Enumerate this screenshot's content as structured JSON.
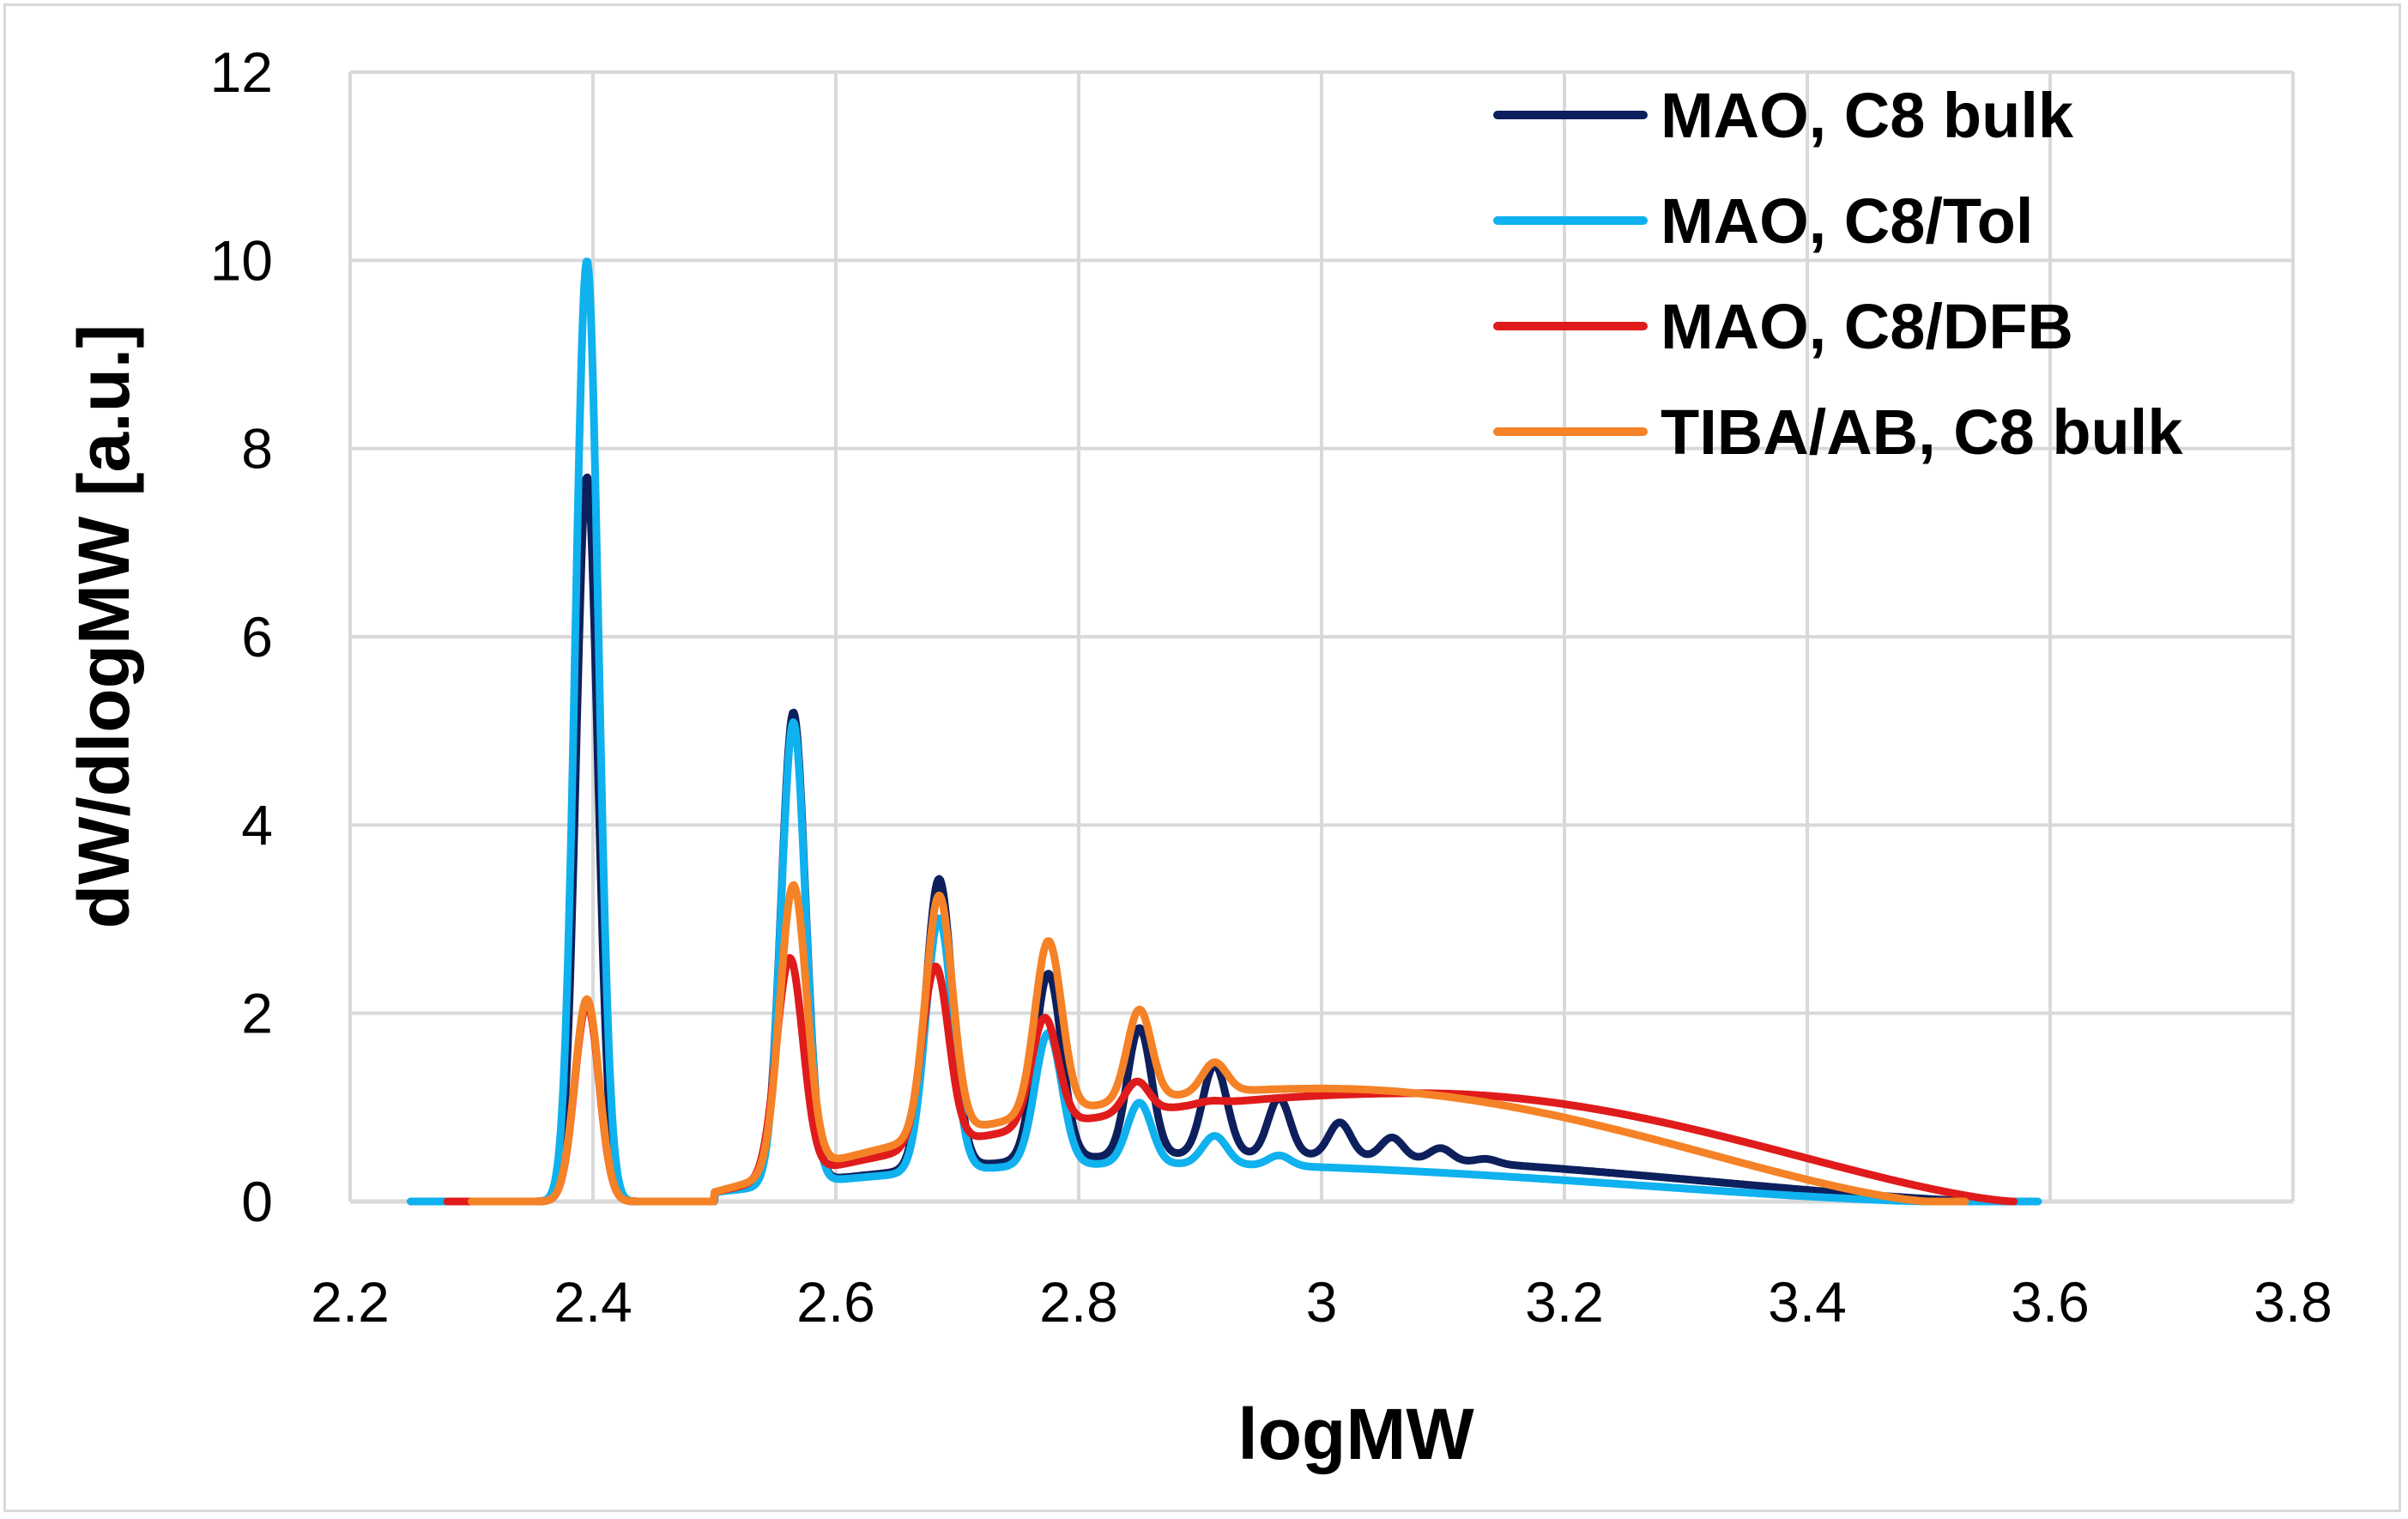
{
  "chart_data": {
    "type": "line",
    "title": "",
    "xlabel": "logMW",
    "ylabel": "dW/dlogMW [a.u.]",
    "xlim": [
      2.2,
      3.8
    ],
    "ylim": [
      0,
      12
    ],
    "xticks": [
      2.2,
      2.4,
      2.6,
      2.8,
      3.0,
      3.2,
      3.4,
      3.6,
      3.8
    ],
    "xtick_labels": [
      "2.2",
      "2.4",
      "2.6",
      "2.8",
      "3",
      "3.2",
      "3.4",
      "3.6",
      "3.8"
    ],
    "yticks": [
      0,
      2,
      4,
      6,
      8,
      10,
      12
    ],
    "ytick_labels": [
      "0",
      "2",
      "4",
      "6",
      "8",
      "10",
      "12"
    ],
    "grid": true,
    "legend_position": "top-right",
    "series": [
      {
        "name": "MAO, C8 bulk",
        "color": "#0d1f5c",
        "x_range": [
          2.25,
          3.58
        ],
        "baseline": {
          "start": 2.5,
          "end": 3.55,
          "peak_at": 2.92,
          "left_height": 0.1,
          "plateau_height": 0.5,
          "right_height": 0.0
        },
        "peaks": [
          {
            "x": 2.395,
            "height": 7.7,
            "width": 0.009
          },
          {
            "x": 2.565,
            "height": 5.1,
            "width": 0.01
          },
          {
            "x": 2.685,
            "height": 3.25,
            "width": 0.011
          },
          {
            "x": 2.775,
            "height": 2.2,
            "width": 0.011
          },
          {
            "x": 2.85,
            "height": 1.6,
            "width": 0.01
          },
          {
            "x": 2.912,
            "height": 1.2,
            "width": 0.01
          },
          {
            "x": 2.965,
            "height": 0.85,
            "width": 0.009
          },
          {
            "x": 3.015,
            "height": 0.6,
            "width": 0.009
          },
          {
            "x": 3.058,
            "height": 0.45,
            "width": 0.009
          },
          {
            "x": 3.098,
            "height": 0.35,
            "width": 0.009
          },
          {
            "x": 3.135,
            "height": 0.25,
            "width": 0.009
          }
        ]
      },
      {
        "name": "MAO, C8/Tol",
        "color": "#0fb1ee",
        "x_range": [
          2.25,
          3.59
        ],
        "baseline": {
          "start": 2.5,
          "end": 3.5,
          "peak_at": 2.85,
          "left_height": 0.1,
          "plateau_height": 0.4,
          "right_height": 0.0
        },
        "peaks": [
          {
            "x": 2.395,
            "height": 10.0,
            "width": 0.0095
          },
          {
            "x": 2.565,
            "height": 5.0,
            "width": 0.01
          },
          {
            "x": 2.685,
            "height": 2.85,
            "width": 0.011
          },
          {
            "x": 2.775,
            "height": 1.6,
            "width": 0.011
          },
          {
            "x": 2.85,
            "height": 0.85,
            "width": 0.01
          },
          {
            "x": 2.912,
            "height": 0.5,
            "width": 0.01
          },
          {
            "x": 2.965,
            "height": 0.3,
            "width": 0.009
          },
          {
            "x": 3.015,
            "height": 0.15,
            "width": 0.009
          }
        ]
      },
      {
        "name": "MAO, C8/DFB",
        "color": "#e01b1b",
        "x_range": [
          2.28,
          3.57
        ],
        "baseline": {
          "start": 2.5,
          "end": 3.57,
          "peak_at": 3.08,
          "left_height": 0.1,
          "plateau_height": 1.15,
          "right_height": 0.0
        },
        "peaks": [
          {
            "x": 2.395,
            "height": 2.1,
            "width": 0.01
          },
          {
            "x": 2.562,
            "height": 2.45,
            "width": 0.011
          },
          {
            "x": 2.682,
            "height": 2.2,
            "width": 0.011
          },
          {
            "x": 2.772,
            "height": 1.55,
            "width": 0.011
          },
          {
            "x": 2.848,
            "height": 0.8,
            "width": 0.01
          },
          {
            "x": 2.91,
            "height": 0.55,
            "width": 0.01
          },
          {
            "x": 2.962,
            "height": 0.4,
            "width": 0.009
          },
          {
            "x": 3.01,
            "height": 0.25,
            "width": 0.009
          },
          {
            "x": 3.055,
            "height": 0.15,
            "width": 0.009
          },
          {
            "x": 3.095,
            "height": 0.1,
            "width": 0.009
          }
        ]
      },
      {
        "name": "TIBA/AB, C8 bulk",
        "color": "#f58226",
        "x_range": [
          2.3,
          3.53
        ],
        "baseline": {
          "start": 2.5,
          "end": 3.5,
          "peak_at": 3.0,
          "left_height": 0.1,
          "plateau_height": 1.2,
          "right_height": 0.0
        },
        "peaks": [
          {
            "x": 2.395,
            "height": 2.15,
            "width": 0.01
          },
          {
            "x": 2.565,
            "height": 3.2,
            "width": 0.011
          },
          {
            "x": 2.685,
            "height": 2.9,
            "width": 0.011
          },
          {
            "x": 2.775,
            "height": 2.3,
            "width": 0.011
          },
          {
            "x": 2.85,
            "height": 1.5,
            "width": 0.01
          },
          {
            "x": 2.912,
            "height": 0.9,
            "width": 0.01
          },
          {
            "x": 2.965,
            "height": 0.55,
            "width": 0.009
          },
          {
            "x": 3.015,
            "height": 0.35,
            "width": 0.009
          },
          {
            "x": 3.058,
            "height": 0.25,
            "width": 0.009
          },
          {
            "x": 3.098,
            "height": 0.18,
            "width": 0.009
          },
          {
            "x": 3.135,
            "height": 0.12,
            "width": 0.009
          }
        ]
      }
    ]
  }
}
